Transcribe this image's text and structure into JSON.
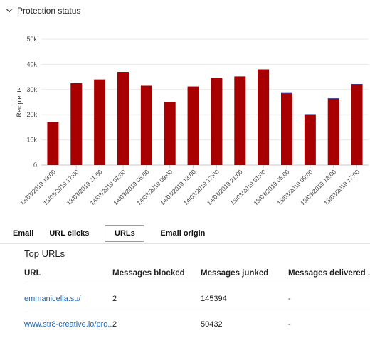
{
  "section": {
    "title": "Protection status"
  },
  "chart_data": {
    "type": "bar",
    "ylabel": "Recipients",
    "yticks": [
      "0",
      "10k",
      "20k",
      "30k",
      "40k",
      "50k"
    ],
    "ylim": [
      0,
      50000
    ],
    "grid": true,
    "categories": [
      "13/03/2019 13:00",
      "13/03/2019 17:00",
      "13/03/2019 21:00",
      "14/03/2019 01:00",
      "14/03/2019 05:00",
      "14/03/2019 09:00",
      "14/03/2019 13:00",
      "14/03/2019 17:00",
      "14/03/2019 21:00",
      "15/03/2019 01:00",
      "15/03/2019 05:00",
      "15/03/2019 09:00",
      "15/03/2019 13:00",
      "15/03/2019 17:00"
    ],
    "series": [
      {
        "color": "#a80000",
        "values": [
          17000,
          32500,
          34000,
          37000,
          31500,
          25000,
          31200,
          34500,
          35200,
          38000,
          28500,
          19800,
          26000,
          32000
        ]
      },
      {
        "color": "#1a237e",
        "values": [
          0,
          0,
          0,
          0,
          0,
          0,
          0,
          0,
          0,
          0,
          400,
          400,
          500,
          200
        ]
      }
    ]
  },
  "tabs": [
    {
      "label": "Email",
      "active": false
    },
    {
      "label": "URL clicks",
      "active": false
    },
    {
      "label": "URLs",
      "active": true
    },
    {
      "label": "Email origin",
      "active": false
    }
  ],
  "table": {
    "title": "Top URLs",
    "headers": [
      "URL",
      "Messages blocked",
      "Messages junked",
      "Messages delivered ..."
    ],
    "rows": [
      [
        "emmanicella.su/",
        "2",
        "145394",
        "-"
      ],
      [
        "www.str8-creative.io/pro...",
        "2",
        "50432",
        "-"
      ]
    ]
  }
}
